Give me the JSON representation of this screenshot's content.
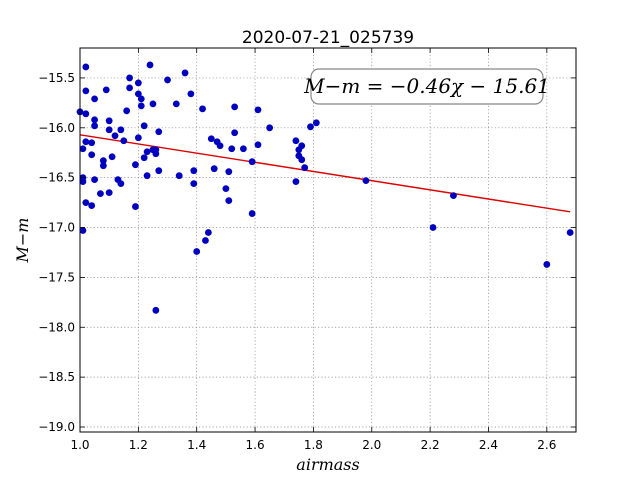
{
  "chart_data": {
    "type": "scatter",
    "title": "2020-07-21_025739",
    "xlabel": "airmass",
    "ylabel": "M−m",
    "xlim": [
      1.0,
      2.7
    ],
    "ylim": [
      -19.05,
      -15.2
    ],
    "grid": true,
    "x_ticks": [
      1.0,
      1.2,
      1.4,
      1.6,
      1.8,
      2.0,
      2.2,
      2.4,
      2.6
    ],
    "x_tick_labels": [
      "1.0",
      "1.2",
      "1.4",
      "1.6",
      "1.8",
      "2.0",
      "2.2",
      "2.4",
      "2.6"
    ],
    "y_ticks": [
      -15.5,
      -16.0,
      -16.5,
      -17.0,
      -17.5,
      -18.0,
      -18.5,
      -19.0
    ],
    "y_tick_labels": [
      "−15.5",
      "−16.0",
      "−16.5",
      "−17.0",
      "−17.5",
      "−18.0",
      "−18.5",
      "−19.0"
    ],
    "annotation": "M−m = −0.46χ − 15.61",
    "fit": {
      "slope": -0.46,
      "intercept": -15.61,
      "x_range": [
        1.0,
        2.68
      ],
      "color": "#dd0000"
    },
    "point_color": "#0000bf",
    "points": [
      [
        1.0,
        -15.84
      ],
      [
        1.01,
        -16.21
      ],
      [
        1.01,
        -16.5
      ],
      [
        1.01,
        -16.54
      ],
      [
        1.01,
        -17.03
      ],
      [
        1.02,
        -15.39
      ],
      [
        1.02,
        -15.63
      ],
      [
        1.02,
        -15.86
      ],
      [
        1.02,
        -16.14
      ],
      [
        1.02,
        -16.75
      ],
      [
        1.04,
        -16.15
      ],
      [
        1.04,
        -16.27
      ],
      [
        1.04,
        -16.78
      ],
      [
        1.05,
        -15.92
      ],
      [
        1.05,
        -15.98
      ],
      [
        1.05,
        -15.71
      ],
      [
        1.05,
        -16.52
      ],
      [
        1.07,
        -16.66
      ],
      [
        1.08,
        -16.33
      ],
      [
        1.08,
        -16.38
      ],
      [
        1.09,
        -15.62
      ],
      [
        1.1,
        -15.93
      ],
      [
        1.1,
        -16.02
      ],
      [
        1.1,
        -16.65
      ],
      [
        1.11,
        -16.29
      ],
      [
        1.12,
        -16.08
      ],
      [
        1.13,
        -16.52
      ],
      [
        1.14,
        -16.02
      ],
      [
        1.14,
        -16.56
      ],
      [
        1.15,
        -16.13
      ],
      [
        1.16,
        -15.83
      ],
      [
        1.17,
        -15.5
      ],
      [
        1.17,
        -15.6
      ],
      [
        1.19,
        -16.37
      ],
      [
        1.19,
        -16.79
      ],
      [
        1.2,
        -15.66
      ],
      [
        1.2,
        -15.55
      ],
      [
        1.2,
        -16.1
      ],
      [
        1.21,
        -15.71
      ],
      [
        1.21,
        -15.78
      ],
      [
        1.22,
        -15.98
      ],
      [
        1.22,
        -16.3
      ],
      [
        1.23,
        -16.48
      ],
      [
        1.23,
        -16.24
      ],
      [
        1.24,
        -15.37
      ],
      [
        1.25,
        -16.22
      ],
      [
        1.25,
        -15.76
      ],
      [
        1.26,
        -16.26
      ],
      [
        1.26,
        -16.22
      ],
      [
        1.26,
        -17.83
      ],
      [
        1.27,
        -16.04
      ],
      [
        1.27,
        -16.43
      ],
      [
        1.3,
        -15.52
      ],
      [
        1.33,
        -15.76
      ],
      [
        1.34,
        -16.48
      ],
      [
        1.36,
        -15.45
      ],
      [
        1.38,
        -15.66
      ],
      [
        1.39,
        -16.56
      ],
      [
        1.39,
        -16.43
      ],
      [
        1.4,
        -17.24
      ],
      [
        1.42,
        -15.81
      ],
      [
        1.43,
        -17.13
      ],
      [
        1.44,
        -17.05
      ],
      [
        1.45,
        -16.11
      ],
      [
        1.46,
        -16.41
      ],
      [
        1.47,
        -16.14
      ],
      [
        1.48,
        -16.18
      ],
      [
        1.5,
        -16.61
      ],
      [
        1.51,
        -16.44
      ],
      [
        1.51,
        -16.73
      ],
      [
        1.52,
        -16.21
      ],
      [
        1.53,
        -16.05
      ],
      [
        1.53,
        -15.79
      ],
      [
        1.56,
        -16.21
      ],
      [
        1.59,
        -16.34
      ],
      [
        1.59,
        -16.86
      ],
      [
        1.61,
        -16.17
      ],
      [
        1.61,
        -15.82
      ],
      [
        1.65,
        -16.0
      ],
      [
        1.74,
        -16.13
      ],
      [
        1.74,
        -16.54
      ],
      [
        1.75,
        -16.22
      ],
      [
        1.75,
        -16.28
      ],
      [
        1.76,
        -16.32
      ],
      [
        1.76,
        -16.18
      ],
      [
        1.77,
        -16.4
      ],
      [
        1.79,
        -15.99
      ],
      [
        1.81,
        -15.95
      ],
      [
        1.98,
        -16.53
      ],
      [
        2.21,
        -17.0
      ],
      [
        2.28,
        -16.68
      ],
      [
        2.6,
        -17.37
      ],
      [
        2.68,
        -17.05
      ]
    ]
  }
}
